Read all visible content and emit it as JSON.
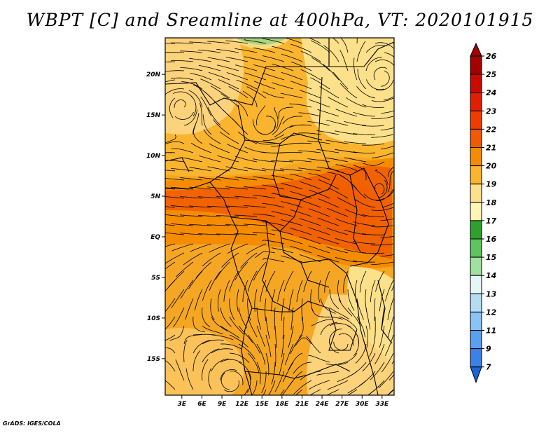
{
  "title": "WBPT [C] and Sreamline at 400hPa, VT: 2020101915",
  "credit": "GrADS: IGES/COLA",
  "map": {
    "lat_labels": [
      "20N",
      "15N",
      "10N",
      "5N",
      "EQ",
      "5S",
      "10S",
      "15S"
    ],
    "lat_values": [
      20,
      15,
      10,
      5,
      0,
      -5,
      -10,
      -15
    ],
    "lon_labels": [
      "3E",
      "6E",
      "9E",
      "12E",
      "15E",
      "18E",
      "21E",
      "24E",
      "27E",
      "30E",
      "33E"
    ],
    "lon_values": [
      3,
      6,
      9,
      12,
      15,
      18,
      21,
      24,
      27,
      30,
      33
    ],
    "lon_range": [
      0.5,
      34.8
    ],
    "lat_range": [
      -19.5,
      24.5
    ]
  },
  "colorbar": {
    "levels": [
      "26",
      "25",
      "24",
      "23",
      "22",
      "21",
      "20",
      "19",
      "18",
      "17",
      "16",
      "15",
      "14",
      "13",
      "12",
      "11",
      "9",
      "7"
    ],
    "colors": [
      "#a50000",
      "#c80a00",
      "#e11e00",
      "#f03c00",
      "#f05a00",
      "#f58c00",
      "#fbb42d",
      "#fde08a",
      "#fff5b4",
      "#2da02d",
      "#5fc35f",
      "#a0e0a0",
      "#e6f5f5",
      "#b4dcf5",
      "#8cc3f5",
      "#5aa0f0",
      "#3c82e6",
      "#1e64d2"
    ],
    "top_color": "#a50000",
    "bottom_color": "#1e64d2"
  }
}
